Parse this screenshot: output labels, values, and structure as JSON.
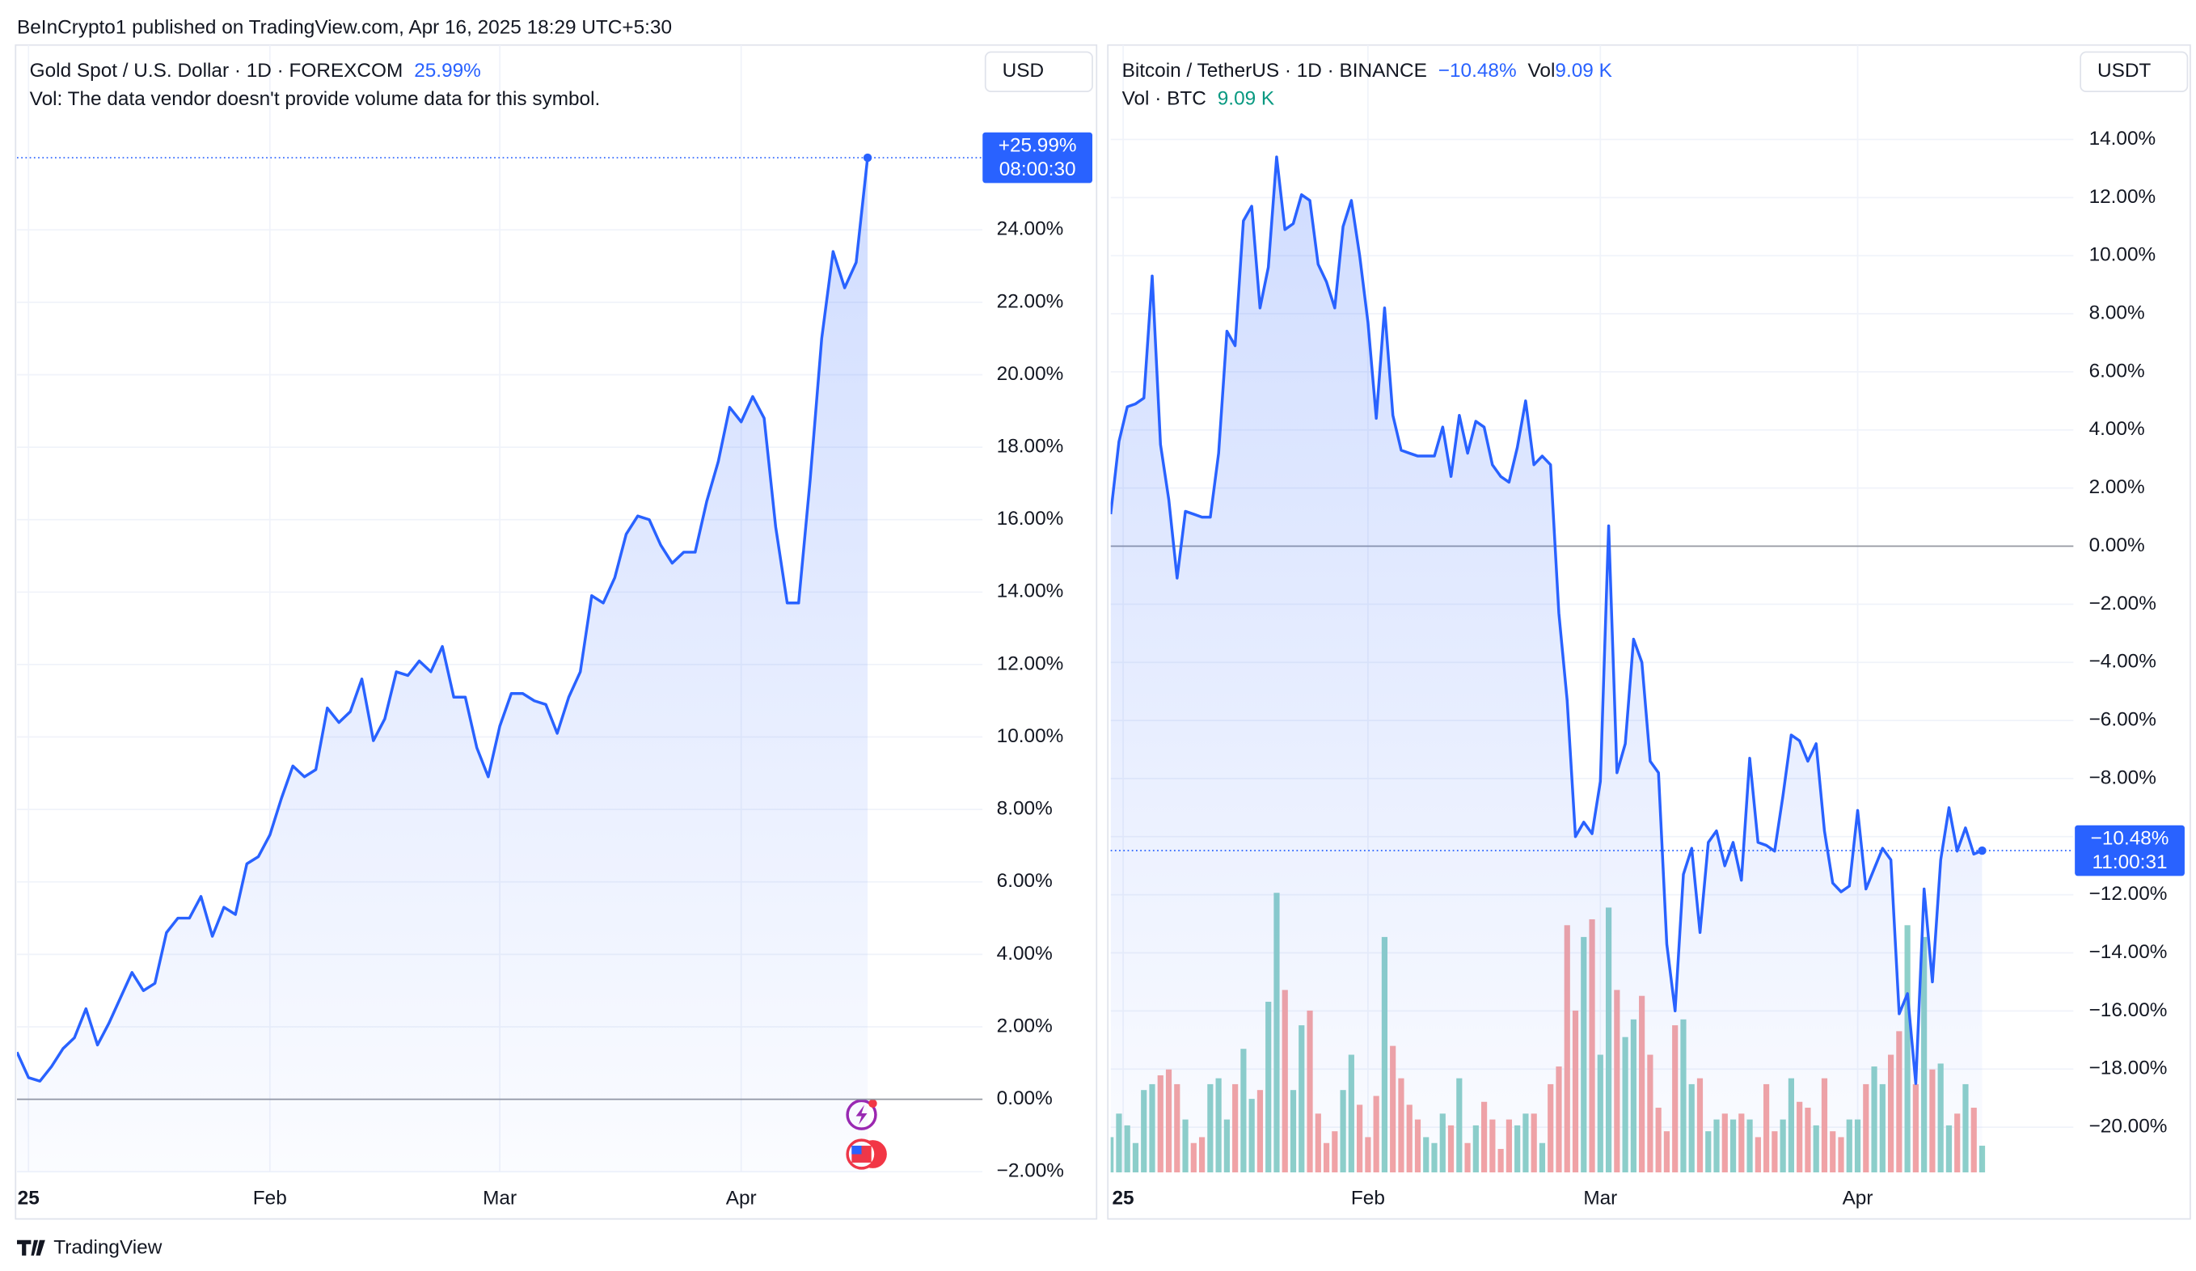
{
  "header": "BeInCrypto1 published on TradingView.com, Apr 16, 2025 18:29 UTC+5:30",
  "footer": "TradingView",
  "chart_data": [
    {
      "type": "line",
      "title": "Gold Spot / U.S. Dollar · 1D · FOREXCOM",
      "change": "25.99%",
      "note": "Vol: The data vendor doesn't provide volume data for this symbol.",
      "currency": "USD",
      "color": "#2962ff",
      "last_label": "+25.99%",
      "last_time": "08:00:30",
      "values": [
        1.3,
        0.6,
        0.5,
        0.9,
        1.4,
        1.7,
        2.5,
        1.5,
        2.1,
        2.8,
        3.5,
        3.0,
        3.2,
        4.6,
        5.0,
        5.0,
        5.6,
        4.5,
        5.3,
        5.1,
        6.5,
        6.7,
        7.3,
        8.3,
        9.2,
        8.9,
        9.1,
        10.8,
        10.4,
        10.7,
        11.6,
        9.9,
        10.5,
        11.8,
        11.7,
        12.1,
        11.8,
        12.5,
        11.1,
        11.1,
        9.7,
        8.9,
        10.3,
        11.2,
        11.2,
        11.0,
        10.9,
        10.1,
        11.1,
        11.8,
        13.9,
        13.7,
        14.4,
        15.6,
        16.1,
        16.0,
        15.3,
        14.8,
        15.1,
        15.1,
        16.5,
        17.6,
        19.1,
        18.7,
        19.4,
        18.8,
        15.8,
        13.7,
        13.7,
        17.1,
        21.0,
        23.4,
        22.4,
        23.1,
        25.99
      ],
      "xlim": [
        0,
        84
      ],
      "xticks": [
        {
          "value": 1,
          "label": "25"
        },
        {
          "value": 22,
          "label": "Feb"
        },
        {
          "value": 42,
          "label": "Mar"
        },
        {
          "value": 63,
          "label": "Apr"
        }
      ],
      "ylim": [
        -2.02,
        29.1
      ],
      "yticks": [
        {
          "value": -2,
          "label": "−2.00%"
        },
        {
          "value": 0,
          "label": "0.00%"
        },
        {
          "value": 2,
          "label": "2.00%"
        },
        {
          "value": 4,
          "label": "4.00%"
        },
        {
          "value": 6,
          "label": "6.00%"
        },
        {
          "value": 8,
          "label": "8.00%"
        },
        {
          "value": 10,
          "label": "10.00%"
        },
        {
          "value": 12,
          "label": "12.00%"
        },
        {
          "value": 14,
          "label": "14.00%"
        },
        {
          "value": 16,
          "label": "16.00%"
        },
        {
          "value": 18,
          "label": "18.00%"
        },
        {
          "value": 20,
          "label": "20.00%"
        },
        {
          "value": 22,
          "label": "22.00%"
        },
        {
          "value": 24,
          "label": "24.00%"
        }
      ],
      "grid": true
    },
    {
      "type": "line",
      "title": "Bitcoin / TetherUS · 1D · BINANCE",
      "change": "−10.48%",
      "vol_title": "Vol",
      "vol_value": "9.09 K",
      "currency": "USDT",
      "color": "#2962ff",
      "last_label": "−10.48%",
      "last_time": "11:00:31",
      "values": [
        1.1,
        3.6,
        4.8,
        4.9,
        5.1,
        9.3,
        3.5,
        1.6,
        -1.1,
        1.2,
        1.1,
        1.0,
        1.0,
        3.2,
        7.4,
        6.9,
        11.2,
        11.7,
        8.2,
        9.6,
        13.4,
        10.9,
        11.1,
        12.1,
        11.9,
        9.7,
        9.1,
        8.2,
        11.0,
        11.9,
        10.0,
        7.7,
        4.4,
        8.2,
        4.5,
        3.3,
        3.2,
        3.1,
        3.1,
        3.1,
        4.1,
        2.4,
        4.5,
        3.2,
        4.3,
        4.1,
        2.8,
        2.4,
        2.2,
        3.4,
        5.0,
        2.8,
        3.1,
        2.8,
        -2.3,
        -5.3,
        -10.0,
        -9.5,
        -9.9,
        -8.1,
        0.7,
        -7.8,
        -6.8,
        -3.2,
        -4.0,
        -7.4,
        -7.8,
        -13.7,
        -16.0,
        -11.3,
        -10.4,
        -13.3,
        -10.2,
        -9.8,
        -11.0,
        -10.2,
        -11.5,
        -7.3,
        -10.2,
        -10.3,
        -10.5,
        -8.6,
        -6.5,
        -6.7,
        -7.4,
        -6.8,
        -9.8,
        -11.6,
        -11.9,
        -11.7,
        -9.1,
        -11.8,
        -11.1,
        -10.4,
        -10.8,
        -16.1,
        -15.4,
        -18.5,
        -11.8,
        -15.0,
        -10.8,
        -9.0,
        -10.5,
        -9.7,
        -10.6,
        -10.48
      ],
      "volume": {
        "name": "Vol · BTC",
        "legend_value": "9.09 K",
        "up_color": "#8ed0c9",
        "down_color": "#f4a4a4",
        "ylim": [
          0,
          383
        ],
        "values": [
          12,
          20,
          16,
          10,
          28,
          30,
          33,
          35,
          30,
          18,
          10,
          12,
          30,
          32,
          18,
          30,
          42,
          25,
          28,
          58,
          95,
          62,
          28,
          50,
          55,
          20,
          10,
          14,
          28,
          40,
          23,
          12,
          26,
          80,
          43,
          32,
          23,
          18,
          12,
          10,
          20,
          16,
          32,
          10,
          16,
          24,
          18,
          8,
          18,
          16,
          20,
          20,
          10,
          30,
          36,
          84,
          55,
          80,
          86,
          40,
          90,
          62,
          46,
          52,
          60,
          40,
          22,
          14,
          50,
          52,
          30,
          32,
          14,
          18,
          20,
          18,
          20,
          18,
          12,
          30,
          14,
          18,
          32,
          24,
          22,
          16,
          32,
          14,
          12,
          18,
          18,
          30,
          36,
          30,
          40,
          48,
          84,
          30,
          80,
          35,
          37,
          16,
          20,
          30,
          22,
          9.09
        ]
      },
      "xlim": [
        0,
        116
      ],
      "xticks": [
        {
          "value": 1.5,
          "label": "25"
        },
        {
          "value": 31,
          "label": "Feb"
        },
        {
          "value": 59,
          "label": "Mar"
        },
        {
          "value": 90,
          "label": "Apr"
        }
      ],
      "ylim": [
        -21.56,
        17.25
      ],
      "yticks": [
        {
          "value": -20,
          "label": "−20.00%"
        },
        {
          "value": -18,
          "label": "−18.00%"
        },
        {
          "value": -16,
          "label": "−16.00%"
        },
        {
          "value": -14,
          "label": "−14.00%"
        },
        {
          "value": -12,
          "label": "−12.00%"
        },
        {
          "value": -10,
          "label": "−10.00%"
        },
        {
          "value": -8,
          "label": "−8.00%"
        },
        {
          "value": -6,
          "label": "−6.00%"
        },
        {
          "value": -4,
          "label": "−4.00%"
        },
        {
          "value": -2,
          "label": "−2.00%"
        },
        {
          "value": 0,
          "label": "0.00%"
        },
        {
          "value": 2,
          "label": "2.00%"
        },
        {
          "value": 4,
          "label": "4.00%"
        },
        {
          "value": 6,
          "label": "6.00%"
        },
        {
          "value": 8,
          "label": "8.00%"
        },
        {
          "value": 10,
          "label": "10.00%"
        },
        {
          "value": 12,
          "label": "12.00%"
        },
        {
          "value": 14,
          "label": "14.00%"
        }
      ],
      "grid": true
    }
  ]
}
